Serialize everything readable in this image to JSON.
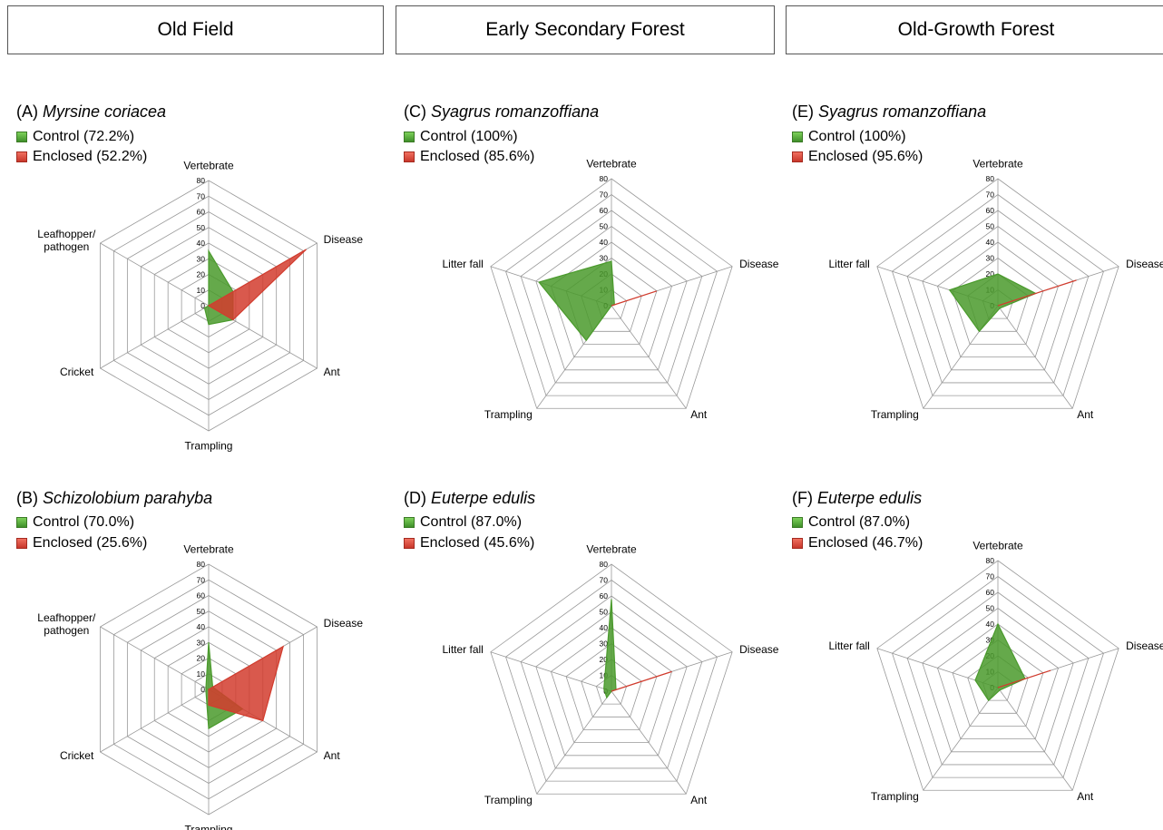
{
  "headers": [
    "Old Field",
    "Early Secondary Forest",
    "Old-Growth Forest"
  ],
  "colors": {
    "control": "#4a9a2c",
    "enclosed": "#d23c2e",
    "grid": "#999999"
  },
  "chart_data": [
    {
      "type": "radar",
      "panel": "(A)",
      "species": "Myrsine coriacea",
      "axes": [
        "Vertebrate",
        "Disease",
        "Ant",
        "Trampling",
        "Cricket",
        "Leafhopper/\npathogen"
      ],
      "rmax": 80,
      "ticks": [
        0,
        10,
        20,
        30,
        40,
        50,
        60,
        70,
        80
      ],
      "series": [
        {
          "name": "Control (72.2%)",
          "values": [
            35,
            18,
            18,
            12,
            3,
            0
          ]
        },
        {
          "name": "Enclosed (52.2%)",
          "values": [
            0,
            72,
            18,
            0,
            0,
            0
          ]
        }
      ]
    },
    {
      "type": "radar",
      "panel": "(B)",
      "species": "Schizolobium parahyba",
      "axes": [
        "Vertebrate",
        "Disease",
        "Ant",
        "Trampling",
        "Cricket",
        "Leafhopper/\npathogen"
      ],
      "rmax": 80,
      "ticks": [
        0,
        10,
        20,
        30,
        40,
        50,
        60,
        70,
        80
      ],
      "series": [
        {
          "name": "Control (70.0%)",
          "values": [
            30,
            3,
            25,
            25,
            2,
            2
          ]
        },
        {
          "name": "Enclosed (25.6%)",
          "values": [
            0,
            55,
            40,
            10,
            0,
            0
          ]
        }
      ]
    },
    {
      "type": "radar",
      "panel": "(C)",
      "species": "Syagrus romanzoffiana",
      "axes": [
        "Vertebrate",
        "Litter fall",
        "Trampling",
        "Ant",
        "Disease"
      ],
      "order": [
        0,
        4,
        3,
        2,
        1
      ],
      "rmax": 80,
      "ticks": [
        0,
        10,
        20,
        30,
        40,
        50,
        60,
        70,
        80
      ],
      "series": [
        {
          "name": "Control (100%)",
          "values": [
            28,
            48,
            27,
            0,
            2
          ]
        },
        {
          "name": "Enclosed (85.6%)",
          "values": [
            0,
            0,
            0,
            0,
            30
          ]
        }
      ]
    },
    {
      "type": "radar",
      "panel": "(D)",
      "species": "Euterpe edulis",
      "axes": [
        "Vertebrate",
        "Litter fall",
        "Trampling",
        "Ant",
        "Disease"
      ],
      "order": [
        0,
        4,
        3,
        2,
        1
      ],
      "rmax": 80,
      "ticks": [
        0,
        10,
        20,
        30,
        40,
        50,
        60,
        70,
        80
      ],
      "series": [
        {
          "name": "Control (87.0%)",
          "values": [
            58,
            5,
            5,
            0,
            3
          ]
        },
        {
          "name": "Enclosed (45.6%)",
          "values": [
            0,
            0,
            0,
            0,
            40
          ]
        }
      ]
    },
    {
      "type": "radar",
      "panel": "(E)",
      "species": "Syagrus romanzoffiana",
      "axes": [
        "Vertebrate",
        "Litter fall",
        "Trampling",
        "Ant",
        "Disease"
      ],
      "order": [
        0,
        4,
        3,
        2,
        1
      ],
      "rmax": 80,
      "ticks": [
        0,
        10,
        20,
        30,
        40,
        50,
        60,
        70,
        80
      ],
      "series": [
        {
          "name": "Control (100%)",
          "values": [
            20,
            32,
            20,
            2,
            25
          ]
        },
        {
          "name": "Enclosed (95.6%)",
          "values": [
            0,
            0,
            0,
            0,
            52
          ]
        }
      ]
    },
    {
      "type": "radar",
      "panel": "(F)",
      "species": "Euterpe edulis",
      "axes": [
        "Vertebrate",
        "Litter fall",
        "Trampling",
        "Ant",
        "Disease"
      ],
      "order": [
        0,
        4,
        3,
        2,
        1
      ],
      "rmax": 80,
      "ticks": [
        0,
        10,
        20,
        30,
        40,
        50,
        60,
        70,
        80
      ],
      "series": [
        {
          "name": "Control (87.0%)",
          "values": [
            40,
            15,
            10,
            2,
            18
          ]
        },
        {
          "name": "Enclosed (46.7%)",
          "values": [
            0,
            0,
            0,
            0,
            35
          ]
        }
      ]
    }
  ]
}
